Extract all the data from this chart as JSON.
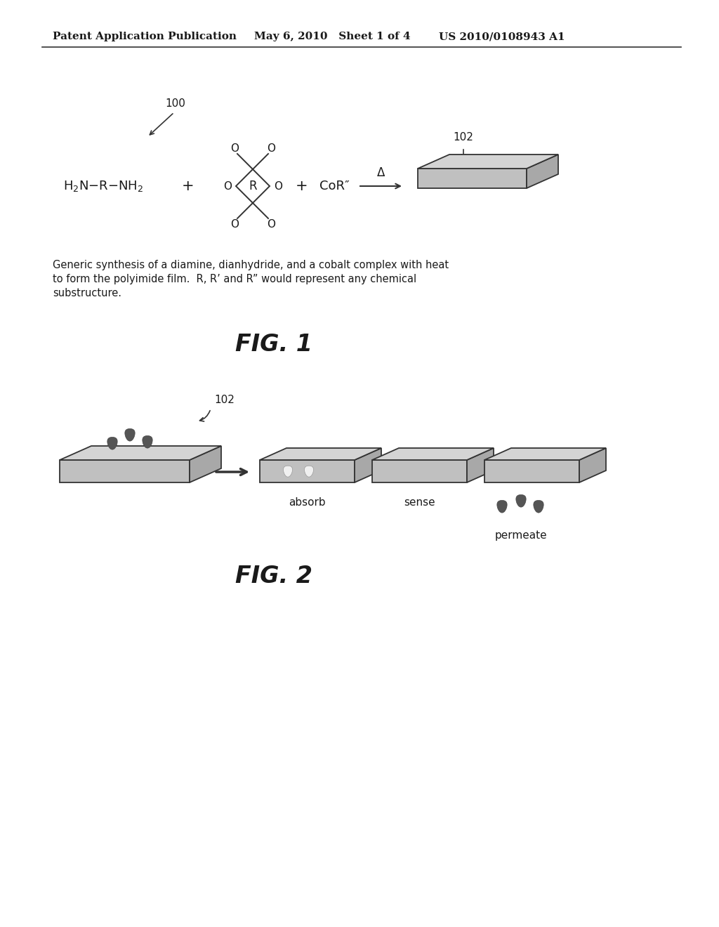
{
  "header_left": "Patent Application Publication",
  "header_mid": "May 6, 2010   Sheet 1 of 4",
  "header_right": "US 2010/0108943 A1",
  "fig1_label": "FIG. 1",
  "fig2_label": "FIG. 2",
  "caption_line1": "Generic synthesis of a diamine, dianhydride, and a cobalt complex with heat",
  "caption_line2": "to form the polyimide film.  R, R’ and R” would represent any chemical",
  "caption_line3": "substructure.",
  "label_100": "100",
  "label_102_top": "102",
  "label_102_bot": "102",
  "absorb_label": "absorb",
  "sense_label": "sense",
  "permeate_label": "permeate",
  "bg_color": "#ffffff",
  "text_color": "#1a1a1a",
  "line_color": "#333333",
  "plate_top_color": "#d4d4d4",
  "plate_front_color": "#c0c0c0",
  "plate_side_color": "#a8a8a8",
  "drop_dark_color": "#555555",
  "drop_white_color": "#f0f0f0",
  "drop_white_edge": "#aaaaaa"
}
